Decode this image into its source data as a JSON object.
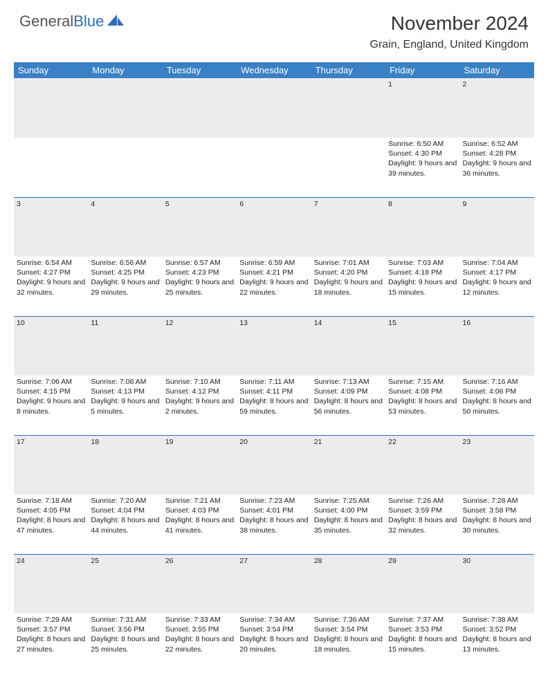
{
  "logo": {
    "part1": "General",
    "part2": "Blue"
  },
  "title": "November 2024",
  "location": "Grain, England, United Kingdom",
  "colors": {
    "header_bg": "#3a80c4",
    "daynum_bg": "#ececec",
    "rule": "#2e6eb5",
    "text": "#222222",
    "logo_blue": "#2e6eb5"
  },
  "weekdays": [
    "Sunday",
    "Monday",
    "Tuesday",
    "Wednesday",
    "Thursday",
    "Friday",
    "Saturday"
  ],
  "weeks": [
    {
      "nums": [
        "",
        "",
        "",
        "",
        "",
        "1",
        "2"
      ],
      "cells": [
        null,
        null,
        null,
        null,
        null,
        {
          "sunrise": "6:50 AM",
          "sunset": "4:30 PM",
          "daylight": "9 hours and 39 minutes."
        },
        {
          "sunrise": "6:52 AM",
          "sunset": "4:28 PM",
          "daylight": "9 hours and 36 minutes."
        }
      ]
    },
    {
      "nums": [
        "3",
        "4",
        "5",
        "6",
        "7",
        "8",
        "9"
      ],
      "cells": [
        {
          "sunrise": "6:54 AM",
          "sunset": "4:27 PM",
          "daylight": "9 hours and 32 minutes."
        },
        {
          "sunrise": "6:56 AM",
          "sunset": "4:25 PM",
          "daylight": "9 hours and 29 minutes."
        },
        {
          "sunrise": "6:57 AM",
          "sunset": "4:23 PM",
          "daylight": "9 hours and 25 minutes."
        },
        {
          "sunrise": "6:59 AM",
          "sunset": "4:21 PM",
          "daylight": "9 hours and 22 minutes."
        },
        {
          "sunrise": "7:01 AM",
          "sunset": "4:20 PM",
          "daylight": "9 hours and 18 minutes."
        },
        {
          "sunrise": "7:03 AM",
          "sunset": "4:18 PM",
          "daylight": "9 hours and 15 minutes."
        },
        {
          "sunrise": "7:04 AM",
          "sunset": "4:17 PM",
          "daylight": "9 hours and 12 minutes."
        }
      ]
    },
    {
      "nums": [
        "10",
        "11",
        "12",
        "13",
        "14",
        "15",
        "16"
      ],
      "cells": [
        {
          "sunrise": "7:06 AM",
          "sunset": "4:15 PM",
          "daylight": "9 hours and 8 minutes."
        },
        {
          "sunrise": "7:08 AM",
          "sunset": "4:13 PM",
          "daylight": "9 hours and 5 minutes."
        },
        {
          "sunrise": "7:10 AM",
          "sunset": "4:12 PM",
          "daylight": "9 hours and 2 minutes."
        },
        {
          "sunrise": "7:11 AM",
          "sunset": "4:11 PM",
          "daylight": "8 hours and 59 minutes."
        },
        {
          "sunrise": "7:13 AM",
          "sunset": "4:09 PM",
          "daylight": "8 hours and 56 minutes."
        },
        {
          "sunrise": "7:15 AM",
          "sunset": "4:08 PM",
          "daylight": "8 hours and 53 minutes."
        },
        {
          "sunrise": "7:16 AM",
          "sunset": "4:06 PM",
          "daylight": "8 hours and 50 minutes."
        }
      ]
    },
    {
      "nums": [
        "17",
        "18",
        "19",
        "20",
        "21",
        "22",
        "23"
      ],
      "cells": [
        {
          "sunrise": "7:18 AM",
          "sunset": "4:05 PM",
          "daylight": "8 hours and 47 minutes."
        },
        {
          "sunrise": "7:20 AM",
          "sunset": "4:04 PM",
          "daylight": "8 hours and 44 minutes."
        },
        {
          "sunrise": "7:21 AM",
          "sunset": "4:03 PM",
          "daylight": "8 hours and 41 minutes."
        },
        {
          "sunrise": "7:23 AM",
          "sunset": "4:01 PM",
          "daylight": "8 hours and 38 minutes."
        },
        {
          "sunrise": "7:25 AM",
          "sunset": "4:00 PM",
          "daylight": "8 hours and 35 minutes."
        },
        {
          "sunrise": "7:26 AM",
          "sunset": "3:59 PM",
          "daylight": "8 hours and 32 minutes."
        },
        {
          "sunrise": "7:28 AM",
          "sunset": "3:58 PM",
          "daylight": "8 hours and 30 minutes."
        }
      ]
    },
    {
      "nums": [
        "24",
        "25",
        "26",
        "27",
        "28",
        "29",
        "30"
      ],
      "cells": [
        {
          "sunrise": "7:29 AM",
          "sunset": "3:57 PM",
          "daylight": "8 hours and 27 minutes."
        },
        {
          "sunrise": "7:31 AM",
          "sunset": "3:56 PM",
          "daylight": "8 hours and 25 minutes."
        },
        {
          "sunrise": "7:33 AM",
          "sunset": "3:55 PM",
          "daylight": "8 hours and 22 minutes."
        },
        {
          "sunrise": "7:34 AM",
          "sunset": "3:54 PM",
          "daylight": "8 hours and 20 minutes."
        },
        {
          "sunrise": "7:36 AM",
          "sunset": "3:54 PM",
          "daylight": "8 hours and 18 minutes."
        },
        {
          "sunrise": "7:37 AM",
          "sunset": "3:53 PM",
          "daylight": "8 hours and 15 minutes."
        },
        {
          "sunrise": "7:38 AM",
          "sunset": "3:52 PM",
          "daylight": "8 hours and 13 minutes."
        }
      ]
    }
  ]
}
